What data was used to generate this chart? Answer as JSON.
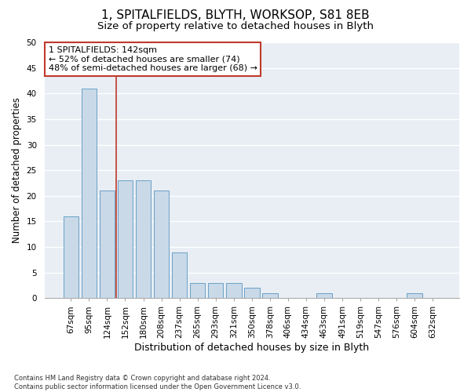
{
  "title1": "1, SPITALFIELDS, BLYTH, WORKSOP, S81 8EB",
  "title2": "Size of property relative to detached houses in Blyth",
  "xlabel": "Distribution of detached houses by size in Blyth",
  "ylabel": "Number of detached properties",
  "categories": [
    "67sqm",
    "95sqm",
    "124sqm",
    "152sqm",
    "180sqm",
    "208sqm",
    "237sqm",
    "265sqm",
    "293sqm",
    "321sqm",
    "350sqm",
    "378sqm",
    "406sqm",
    "434sqm",
    "463sqm",
    "491sqm",
    "519sqm",
    "547sqm",
    "576sqm",
    "604sqm",
    "632sqm"
  ],
  "values": [
    16,
    41,
    21,
    23,
    23,
    21,
    9,
    3,
    3,
    3,
    2,
    1,
    0,
    0,
    1,
    0,
    0,
    0,
    0,
    1,
    0
  ],
  "bar_color": "#c9d9e8",
  "bar_edge_color": "#6aa0c7",
  "vline_x": 2.5,
  "vline_color": "#c0392b",
  "annotation_lines": [
    "1 SPITALFIELDS: 142sqm",
    "← 52% of detached houses are smaller (74)",
    "48% of semi-detached houses are larger (68) →"
  ],
  "annotation_box_color": "#c0392b",
  "ylim": [
    0,
    50
  ],
  "yticks": [
    0,
    5,
    10,
    15,
    20,
    25,
    30,
    35,
    40,
    45,
    50
  ],
  "background_color": "#e8eef4",
  "footnote": "Contains HM Land Registry data © Crown copyright and database right 2024.\nContains public sector information licensed under the Open Government Licence v3.0.",
  "title1_fontsize": 11,
  "title2_fontsize": 9.5,
  "xlabel_fontsize": 9,
  "ylabel_fontsize": 8.5,
  "tick_fontsize": 7.5,
  "annot_fontsize": 8,
  "footnote_fontsize": 6
}
